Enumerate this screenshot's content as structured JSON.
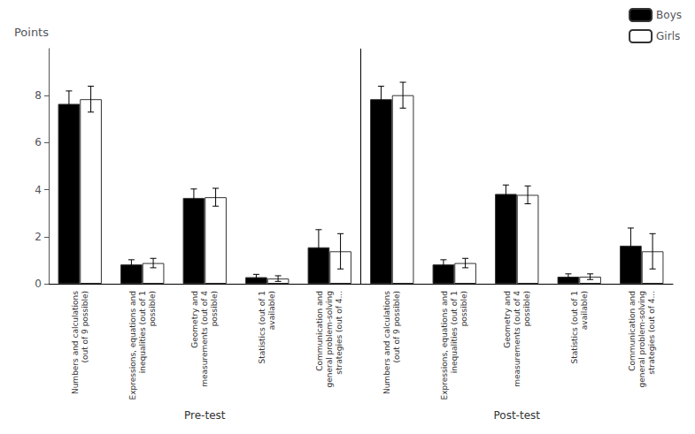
{
  "chart_data": {
    "type": "bar",
    "ylabel": "Points",
    "groups": [
      "Pre-test",
      "Post-test"
    ],
    "categories": [
      "Numbers and calculations\n(out of 9 possible)",
      "Expressions, equations and\ninequalities (out of 1\npossible)",
      "Geometry and\nmeasurements (out of 4\npossible)",
      "Statistics (out of 1\navailable)",
      "Communication and\ngeneral problem-solving\nstrategies (out of 4...",
      "Numbers and calculations\n(out of 9 possible)",
      "Expressions, equations and\ninequalities (out of 1\npossible)",
      "Geometry and\nmeasurements (out of 4\npossible)",
      "Statistics (out of 1\navailable)",
      "Communication and\ngeneral problem-solving\nstrategies (out of 4..."
    ],
    "series": [
      {
        "name": "Boys",
        "color": "#000000",
        "values": [
          7.65,
          0.82,
          3.65,
          0.28,
          1.55,
          7.85,
          0.82,
          3.82,
          0.3,
          1.62
        ],
        "errors": [
          0.55,
          0.2,
          0.38,
          0.12,
          0.75,
          0.55,
          0.2,
          0.38,
          0.12,
          0.75
        ]
      },
      {
        "name": "Girls",
        "color": "#ffffff",
        "values": [
          7.85,
          0.88,
          3.68,
          0.22,
          1.38,
          8.02,
          0.88,
          3.78,
          0.3,
          1.38
        ],
        "errors": [
          0.55,
          0.2,
          0.38,
          0.12,
          0.75,
          0.55,
          0.2,
          0.38,
          0.12,
          0.75
        ]
      }
    ],
    "ylim": [
      0,
      10
    ],
    "yticks": [
      0,
      2,
      4,
      6,
      8
    ],
    "grid": false,
    "legend": "upper right"
  }
}
